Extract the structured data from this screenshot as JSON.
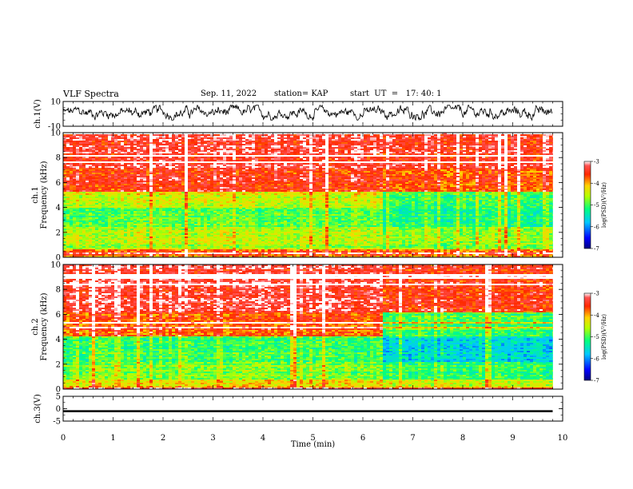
{
  "header": {
    "title": "VLF Spectra",
    "date": "Sep. 11, 2022",
    "station": "station= KAP",
    "start": "start  UT  =   17: 40: 1"
  },
  "chart_data": [
    {
      "type": "line",
      "panel": "ch1-waveform",
      "ylabel": "ch.1(V)",
      "ylim": [
        -10,
        10
      ],
      "yticks": [
        "10",
        "-10"
      ],
      "xlim": [
        0,
        10
      ],
      "data_end_min": 9.8,
      "series": [
        {
          "amplitude_range_v": [
            -5,
            7
          ],
          "color": "#000000"
        }
      ]
    },
    {
      "type": "heatmap",
      "panel": "ch1-spectrogram",
      "ylabel": "ch.1\nFrequency  (kHz)",
      "ylim": [
        0,
        10
      ],
      "yticks": [
        "0",
        "2",
        "4",
        "6",
        "8",
        "10"
      ],
      "xlim": [
        0,
        10
      ],
      "data_end_min": 9.8,
      "transition_min": 6.4,
      "bands": [
        {
          "f_khz": [
            7.0,
            10.0
          ],
          "log_psd_before": -3.3,
          "log_psd_after": -3.4
        },
        {
          "f_khz": [
            5.2,
            7.0
          ],
          "log_psd_before": -3.5,
          "log_psd_after": -3.7
        },
        {
          "f_khz": [
            4.0,
            5.2
          ],
          "log_psd_before": -4.4,
          "log_psd_after": -5.0
        },
        {
          "f_khz": [
            2.4,
            4.0
          ],
          "log_psd_before": -4.9,
          "log_psd_after": -5.2
        },
        {
          "f_khz": [
            0.6,
            2.4
          ],
          "log_psd_before": -4.6,
          "log_psd_after": -4.8
        },
        {
          "f_khz": [
            0.0,
            0.6
          ],
          "log_psd_before": -3.8,
          "log_psd_after": -3.9
        }
      ],
      "colorbar": {
        "label": "log(PSD)(V²/Hz)",
        "range": [
          -7,
          -3
        ],
        "ticks": [
          "-3",
          "-4",
          "-5",
          "-6",
          "-7"
        ]
      }
    },
    {
      "type": "heatmap",
      "panel": "ch2-spectrogram",
      "ylabel": "ch.2\nFrequency  (kHz)",
      "ylim": [
        0,
        10
      ],
      "yticks": [
        "0",
        "2",
        "4",
        "6",
        "8",
        "10"
      ],
      "xlim": [
        0,
        10
      ],
      "data_end_min": 9.8,
      "transition_min": 6.4,
      "bands": [
        {
          "f_khz": [
            6.2,
            10.0
          ],
          "log_psd_before": -3.3,
          "log_psd_after": -3.5
        },
        {
          "f_khz": [
            4.2,
            6.2
          ],
          "log_psd_before": -3.7,
          "log_psd_after": -5.0
        },
        {
          "f_khz": [
            2.2,
            4.2
          ],
          "log_psd_before": -5.0,
          "log_psd_after": -5.6
        },
        {
          "f_khz": [
            0.8,
            2.2
          ],
          "log_psd_before": -4.8,
          "log_psd_after": -5.1
        },
        {
          "f_khz": [
            0.0,
            0.8
          ],
          "log_psd_before": -4.2,
          "log_psd_after": -4.4
        }
      ],
      "colorbar": {
        "label": "log(PSD)(V²/Hz)",
        "range": [
          -7,
          -3
        ],
        "ticks": [
          "-3",
          "-4",
          "-5",
          "-6",
          "-7"
        ]
      }
    },
    {
      "type": "line",
      "panel": "ch3-waveform",
      "ylabel": "ch.3(V)",
      "ylim": [
        -5,
        5
      ],
      "yticks": [
        "5",
        "0",
        "-5"
      ],
      "xlim": [
        0,
        10
      ],
      "xlabel": "Time  (min)",
      "xticks": [
        "0",
        "1",
        "2",
        "3",
        "4",
        "5",
        "6",
        "7",
        "8",
        "9",
        "10"
      ],
      "data_end_min": 9.8,
      "series": [
        {
          "level_v": -1,
          "band_v": [
            -1.4,
            -0.6
          ],
          "color": "#000000"
        }
      ]
    }
  ]
}
